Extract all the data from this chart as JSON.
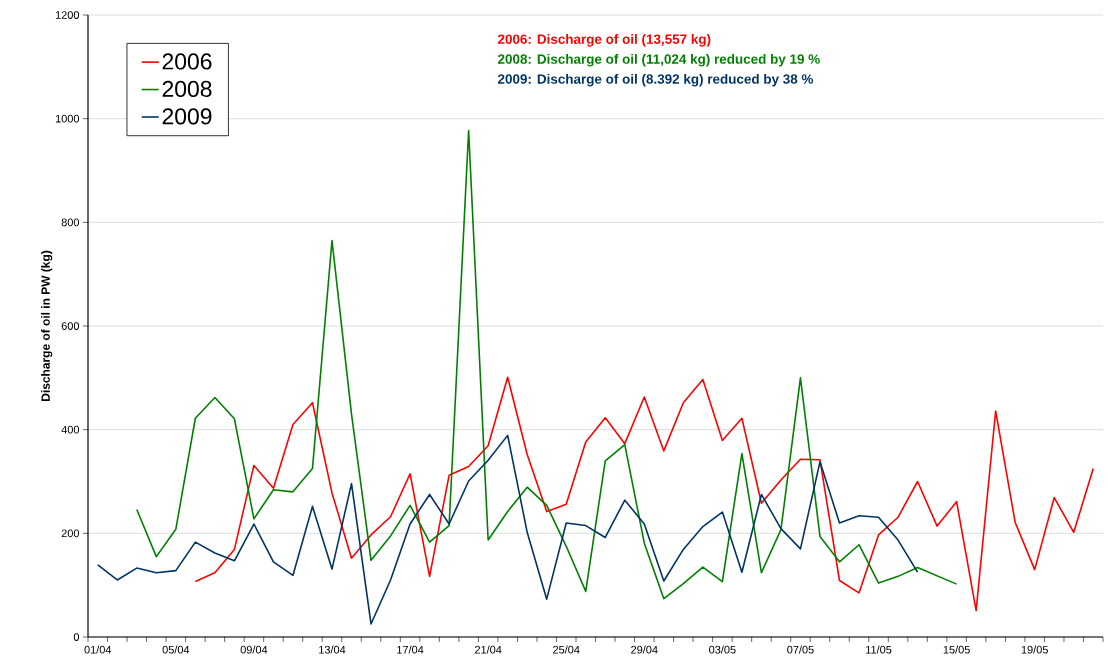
{
  "chart_data": {
    "type": "line",
    "ylabel": "Discharge of oil in PW (kg)",
    "annotations": [
      "2006: Discharge of oil (13,557 kg)",
      "2008: Discharge of oil (11,024 kg) reduced by 19 %",
      "2009: Discharge of oil (8.392 kg) reduced by 38 %"
    ],
    "categories": [
      "01/04",
      null,
      null,
      null,
      "05/04",
      null,
      null,
      null,
      "09/04",
      null,
      null,
      null,
      "13/04",
      null,
      null,
      null,
      "17/04",
      null,
      null,
      null,
      "21/04",
      null,
      null,
      null,
      "25/04",
      null,
      null,
      null,
      "29/04",
      null,
      null,
      null,
      "03/05",
      null,
      null,
      null,
      "07/05",
      null,
      null,
      null,
      "11/05",
      null,
      null,
      null,
      "15/05",
      null,
      null,
      null,
      "19/05",
      null,
      null,
      null
    ],
    "series": [
      {
        "name": "2006",
        "color": "#ff0000",
        "values": [
          null,
          null,
          null,
          null,
          null,
          107,
          124,
          169,
          331,
          287,
          410,
          452,
          278,
          152,
          197,
          232,
          315,
          117,
          312,
          329,
          369,
          501,
          352,
          242,
          256,
          376,
          423,
          373,
          463,
          359,
          452,
          497,
          379,
          422,
          258,
          303,
          343,
          342,
          109,
          85,
          197,
          231,
          300,
          214,
          261,
          51,
          436,
          221,
          130,
          269,
          202,
          325
        ]
      },
      {
        "name": "2008",
        "color": "#008000",
        "values": [
          null,
          null,
          246,
          155,
          208,
          422,
          462,
          421,
          228,
          284,
          280,
          325,
          765,
          430,
          148,
          195,
          254,
          183,
          215,
          977,
          187,
          242,
          289,
          254,
          175,
          88,
          340,
          371,
          181,
          74,
          103,
          135,
          107,
          354,
          124,
          207,
          500,
          194,
          145,
          178,
          104,
          117,
          134,
          118,
          102,
          null,
          null,
          null,
          null,
          null,
          null,
          null
        ]
      },
      {
        "name": "2009",
        "color": "#003366",
        "values": [
          139,
          110,
          133,
          124,
          128,
          183,
          162,
          147,
          218,
          145,
          119,
          252,
          131,
          296,
          25,
          110,
          218,
          275,
          218,
          301,
          341,
          389,
          202,
          73,
          220,
          215,
          192,
          264,
          218,
          108,
          169,
          213,
          241,
          125,
          275,
          209,
          170,
          338,
          220,
          234,
          231,
          187,
          125,
          null,
          null,
          null,
          null,
          null,
          null,
          null,
          null,
          null
        ]
      }
    ],
    "ylim": [
      0,
      1200
    ],
    "yticks": [
      0,
      200,
      400,
      600,
      800,
      1000,
      1200
    ],
    "grid": "y",
    "legend": "top left",
    "marker": "none",
    "line_style": "solid"
  }
}
